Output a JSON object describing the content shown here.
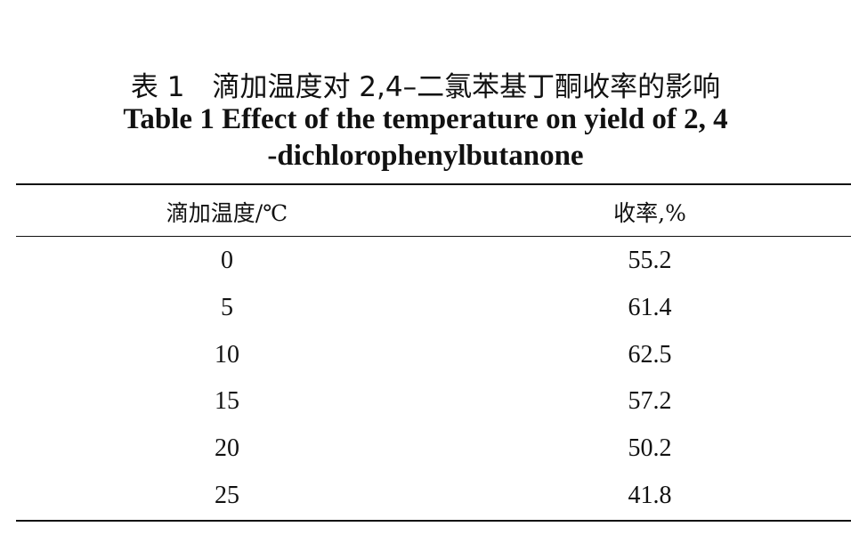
{
  "title": {
    "chinese": "表 1　滴加温度对 2,4–二氯苯基丁酮收率的影响",
    "english": [
      "Table 1 Effect of the temperature on yield of 2, 4",
      "-dichlorophenylbutanone"
    ]
  },
  "table": {
    "header": [
      "滴加温度/℃",
      "收率,%"
    ],
    "rows": [
      [
        "0",
        "55.2"
      ],
      [
        "5",
        "61.4"
      ],
      [
        "10",
        "62.5"
      ],
      [
        "15",
        "57.2"
      ],
      [
        "20",
        "50.2"
      ],
      [
        "25",
        "41.8"
      ]
    ]
  }
}
